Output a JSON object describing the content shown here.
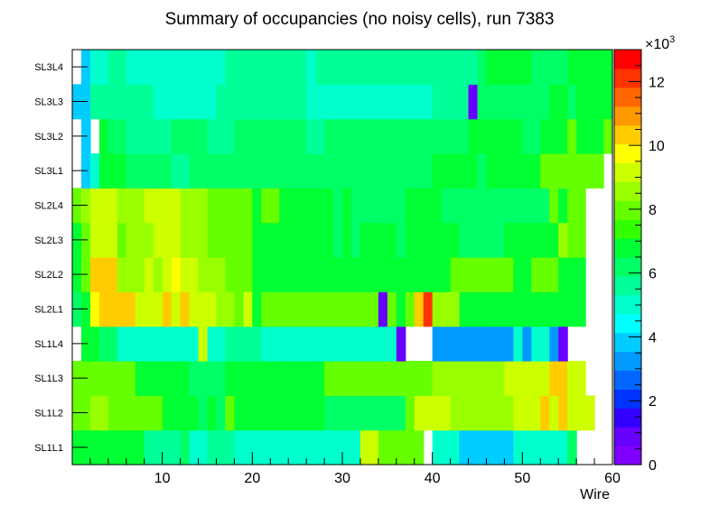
{
  "chart_data": {
    "type": "heatmap",
    "title": "Summary of occupancies (no noisy cells), run 7383",
    "xlabel": "Wire",
    "ylabel": "",
    "xlim": [
      0,
      60
    ],
    "x_ticks": [
      10,
      20,
      30,
      40,
      50,
      60
    ],
    "layers": [
      "SL1L1",
      "SL1L2",
      "SL1L3",
      "SL1L4",
      "SL2L1",
      "SL2L2",
      "SL2L3",
      "SL2L4",
      "SL3L1",
      "SL3L2",
      "SL3L3",
      "SL3L4"
    ],
    "zlim": [
      0,
      13000
    ],
    "z_exponent_label": "×10",
    "z_exponent_power": "3",
    "z_ticks": [
      "0",
      "2",
      "4",
      "6",
      "8",
      "10",
      "12"
    ],
    "z_tick_values": [
      0,
      2000,
      4000,
      6000,
      8000,
      10000,
      12000
    ],
    "palette": [
      "#8000ff",
      "#6600ff",
      "#3300ff",
      "#0033ff",
      "#0066ff",
      "#0099ff",
      "#00ccff",
      "#00ffff",
      "#00ffcc",
      "#00ff99",
      "#00ff66",
      "#00ff33",
      "#33ff00",
      "#66ff00",
      "#99ff00",
      "#ccff00",
      "#ffff00",
      "#ffcc00",
      "#ff9900",
      "#ff6600",
      "#ff3300",
      "#ff0000"
    ],
    "values_unit": "thousands",
    "values": [
      [
        7.0,
        7.0,
        7.0,
        6.5,
        6.5,
        6.5,
        6.5,
        6.5,
        5.8,
        5.8,
        5.8,
        5.8,
        6.3,
        5.2,
        5.2,
        5.8,
        5.8,
        5.8,
        5.2,
        5.2,
        5.2,
        5.2,
        4.8,
        4.8,
        4.8,
        4.8,
        4.8,
        4.8,
        4.8,
        4.8,
        4.8,
        4.8,
        9.0,
        9.0,
        7.8,
        7.8,
        7.8,
        7.8,
        7.8,
        null,
        4.8,
        4.8,
        4.8,
        3.8,
        3.8,
        3.8,
        3.8,
        3.8,
        3.8,
        4.8,
        4.8,
        4.8,
        5.2,
        5.2,
        5.2,
        6.3,
        null,
        null,
        null,
        null
      ],
      [
        8.0,
        8.0,
        8.5,
        8.5,
        8.0,
        8.0,
        7.8,
        7.8,
        7.8,
        7.8,
        7.0,
        7.0,
        7.0,
        7.0,
        6.3,
        7.0,
        6.3,
        7.8,
        7.0,
        7.0,
        7.0,
        7.0,
        7.0,
        7.0,
        7.0,
        7.0,
        7.0,
        7.0,
        6.3,
        6.3,
        6.3,
        6.3,
        6.3,
        6.3,
        6.3,
        6.3,
        6.3,
        7.8,
        9.0,
        9.0,
        9.0,
        9.0,
        8.5,
        8.5,
        8.5,
        8.5,
        8.5,
        8.5,
        8.5,
        9.0,
        9.0,
        9.0,
        10.6,
        9.0,
        10.6,
        9.0,
        9.0,
        9.0,
        null,
        null
      ],
      [
        7.8,
        7.8,
        7.8,
        7.8,
        7.8,
        7.8,
        7.8,
        7.0,
        7.0,
        7.0,
        7.0,
        7.0,
        7.0,
        6.3,
        6.3,
        6.3,
        6.3,
        7.0,
        7.0,
        7.0,
        7.0,
        7.0,
        7.0,
        7.0,
        7.0,
        7.0,
        7.0,
        7.0,
        8.0,
        8.0,
        8.0,
        8.0,
        8.0,
        8.0,
        8.0,
        8.0,
        8.0,
        8.0,
        8.0,
        8.0,
        8.5,
        8.5,
        8.5,
        8.5,
        8.5,
        8.5,
        8.5,
        8.5,
        9.0,
        9.0,
        9.0,
        9.0,
        9.4,
        10.6,
        10.6,
        9.0,
        9.0,
        null,
        null,
        null
      ],
      [
        null,
        7.0,
        7.0,
        6.3,
        6.3,
        4.8,
        4.8,
        5.2,
        5.2,
        5.2,
        5.2,
        5.2,
        5.2,
        5.2,
        9.4,
        5.2,
        5.2,
        5.8,
        5.8,
        5.8,
        5.8,
        4.8,
        4.8,
        5.2,
        5.2,
        5.2,
        4.8,
        4.8,
        4.8,
        4.8,
        4.8,
        4.8,
        4.8,
        4.8,
        4.8,
        4.8,
        0.6,
        null,
        null,
        null,
        3.0,
        3.0,
        3.0,
        3.0,
        3.0,
        3.0,
        3.0,
        3.0,
        3.0,
        4.8,
        3.0,
        4.8,
        4.8,
        3.0,
        0.6,
        null,
        null,
        null,
        null,
        null
      ],
      [
        6.3,
        7.0,
        9.6,
        10.6,
        10.6,
        10.6,
        10.6,
        9.4,
        9.4,
        9.4,
        10.6,
        9.4,
        10.6,
        9.4,
        9.4,
        9.4,
        8.5,
        8.5,
        7.8,
        9.0,
        7.0,
        7.8,
        7.8,
        7.8,
        7.8,
        7.8,
        7.8,
        7.8,
        7.8,
        7.8,
        7.8,
        7.8,
        7.8,
        7.8,
        1.0,
        7.8,
        7.0,
        7.8,
        10.6,
        12.4,
        8.5,
        8.5,
        8.5,
        7.0,
        7.0,
        7.0,
        7.0,
        7.0,
        7.0,
        7.0,
        7.0,
        7.0,
        7.0,
        7.0,
        7.0,
        7.0,
        7.0,
        null,
        null,
        null
      ],
      [
        7.0,
        8.0,
        10.6,
        10.6,
        10.6,
        8.5,
        8.5,
        8.5,
        9.4,
        8.5,
        9.4,
        10.0,
        9.4,
        9.4,
        8.5,
        8.5,
        8.5,
        7.8,
        7.8,
        7.8,
        7.0,
        7.0,
        7.0,
        7.0,
        7.0,
        7.0,
        7.0,
        7.0,
        7.0,
        7.0,
        7.0,
        7.0,
        7.0,
        7.0,
        7.0,
        7.0,
        7.0,
        7.0,
        7.0,
        7.0,
        7.0,
        7.0,
        7.8,
        7.8,
        7.8,
        7.8,
        7.8,
        7.8,
        7.8,
        7.0,
        7.0,
        7.8,
        7.8,
        8.0,
        7.0,
        7.0,
        7.0,
        null,
        null,
        null
      ],
      [
        7.0,
        7.8,
        9.4,
        9.4,
        9.4,
        7.8,
        8.5,
        8.5,
        8.5,
        9.4,
        9.4,
        9.4,
        8.5,
        8.5,
        8.5,
        7.8,
        7.8,
        7.8,
        7.8,
        7.8,
        7.0,
        7.0,
        7.0,
        7.0,
        7.0,
        7.0,
        7.0,
        7.0,
        7.0,
        6.3,
        7.0,
        6.3,
        7.0,
        7.0,
        7.0,
        7.0,
        6.3,
        7.0,
        7.0,
        7.0,
        7.0,
        7.0,
        7.0,
        6.3,
        6.3,
        6.3,
        6.3,
        6.3,
        7.0,
        7.0,
        7.0,
        7.0,
        7.0,
        7.0,
        8.5,
        8.0,
        8.0,
        null,
        null,
        null
      ],
      [
        8.0,
        8.5,
        9.4,
        9.4,
        9.4,
        8.5,
        8.5,
        8.5,
        9.4,
        9.4,
        9.4,
        9.4,
        8.5,
        8.5,
        8.5,
        8.0,
        8.0,
        8.0,
        7.8,
        7.8,
        7.0,
        7.8,
        7.8,
        7.0,
        7.0,
        7.0,
        7.0,
        7.0,
        7.0,
        6.3,
        7.0,
        6.3,
        6.3,
        6.3,
        6.3,
        6.3,
        6.3,
        7.0,
        7.0,
        7.0,
        7.0,
        6.3,
        6.3,
        6.3,
        6.3,
        6.3,
        6.3,
        6.3,
        6.3,
        6.3,
        6.3,
        6.3,
        6.3,
        8.0,
        7.0,
        8.0,
        8.0,
        null,
        null,
        null
      ],
      [
        null,
        3.8,
        4.8,
        6.8,
        6.8,
        6.8,
        6.3,
        6.3,
        6.3,
        6.3,
        6.3,
        5.8,
        5.8,
        6.3,
        6.3,
        6.3,
        6.3,
        6.3,
        6.3,
        6.3,
        6.3,
        6.3,
        6.3,
        6.3,
        6.3,
        6.3,
        6.3,
        6.3,
        6.3,
        6.3,
        6.3,
        6.3,
        6.3,
        6.3,
        6.3,
        6.3,
        6.3,
        6.3,
        6.3,
        6.3,
        6.8,
        6.8,
        6.8,
        6.8,
        6.8,
        6.3,
        7.0,
        7.0,
        7.0,
        7.0,
        7.0,
        7.0,
        7.8,
        7.8,
        7.8,
        7.8,
        7.8,
        7.8,
        7.8,
        null
      ],
      [
        null,
        3.8,
        null,
        6.8,
        6.3,
        6.3,
        5.8,
        5.8,
        5.8,
        5.8,
        5.8,
        6.3,
        6.3,
        6.3,
        6.3,
        5.8,
        5.8,
        5.8,
        6.3,
        6.3,
        6.3,
        6.3,
        6.3,
        6.3,
        6.3,
        6.3,
        5.8,
        5.8,
        6.3,
        6.3,
        6.3,
        6.3,
        6.3,
        6.3,
        6.3,
        6.3,
        6.3,
        6.3,
        6.3,
        6.3,
        6.3,
        6.3,
        6.3,
        6.3,
        6.8,
        6.8,
        6.8,
        7.0,
        7.0,
        7.0,
        6.3,
        6.3,
        7.0,
        7.0,
        7.0,
        7.8,
        7.0,
        7.0,
        7.0,
        7.8
      ],
      [
        3.8,
        3.8,
        5.8,
        5.8,
        5.8,
        5.8,
        5.8,
        5.8,
        5.8,
        5.2,
        5.2,
        5.2,
        5.2,
        5.2,
        5.2,
        5.2,
        5.8,
        5.8,
        5.8,
        5.8,
        5.8,
        5.8,
        5.8,
        5.8,
        5.8,
        5.8,
        5.2,
        5.2,
        5.2,
        5.2,
        5.2,
        5.2,
        5.2,
        5.2,
        5.2,
        5.2,
        5.2,
        5.2,
        5.2,
        5.2,
        5.8,
        5.8,
        5.8,
        5.8,
        0.8,
        6.3,
        6.3,
        6.3,
        6.3,
        6.3,
        6.3,
        6.3,
        6.3,
        7.0,
        7.0,
        6.3,
        7.0,
        7.0,
        7.0,
        7.0
      ],
      [
        null,
        3.8,
        5.2,
        5.2,
        5.8,
        5.8,
        4.8,
        4.8,
        4.8,
        4.8,
        4.8,
        4.8,
        4.8,
        5.2,
        5.2,
        5.2,
        5.2,
        5.8,
        5.8,
        5.8,
        5.8,
        5.8,
        5.8,
        5.8,
        5.8,
        5.8,
        4.8,
        5.8,
        5.8,
        5.8,
        5.8,
        5.8,
        5.8,
        5.8,
        5.8,
        5.8,
        5.8,
        5.8,
        5.8,
        5.8,
        5.8,
        5.8,
        5.8,
        5.8,
        5.8,
        6.3,
        6.8,
        6.8,
        6.8,
        7.0,
        7.0,
        6.3,
        6.3,
        6.3,
        6.3,
        7.0,
        7.0,
        7.0,
        7.0,
        7.0
      ]
    ]
  }
}
